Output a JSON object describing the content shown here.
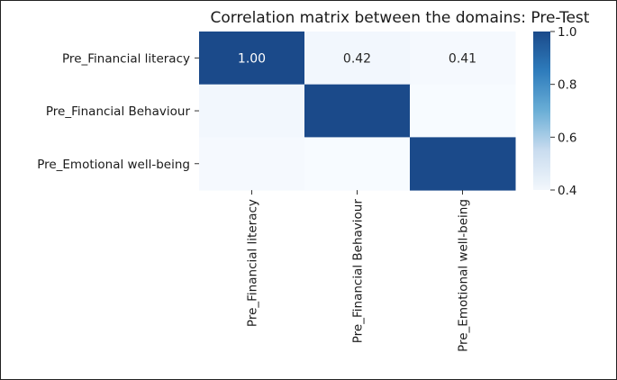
{
  "chart_data": {
    "type": "heatmap",
    "title": "Correlation matrix between the domains: Pre-Test",
    "rows": [
      "Pre_Financial literacy",
      "Pre_Financial Behaviour",
      "Pre_Emotional well-being"
    ],
    "columns": [
      "Pre_Financial literacy",
      "Pre_Financial Behaviour",
      "Pre_Emotional well-being"
    ],
    "values": [
      [
        1.0,
        0.42,
        0.41
      ],
      [
        0.42,
        1.0,
        0.38
      ],
      [
        0.41,
        0.38,
        1.0
      ]
    ],
    "annotations": [
      [
        "1.00",
        "0.42",
        "0.41"
      ],
      [
        "",
        "",
        ""
      ],
      [
        "",
        "",
        ""
      ]
    ],
    "colormap": "Blues",
    "vmin": 0.4,
    "vmax": 1.0,
    "colorbar_ticks": [
      "0.4",
      "0.6",
      "0.8",
      "1.0"
    ],
    "colors": {
      "high": "#1b4a8a",
      "low": "#f7fbff",
      "annotation_on_dark": "#ffffff",
      "annotation_on_light": "#262626"
    }
  }
}
